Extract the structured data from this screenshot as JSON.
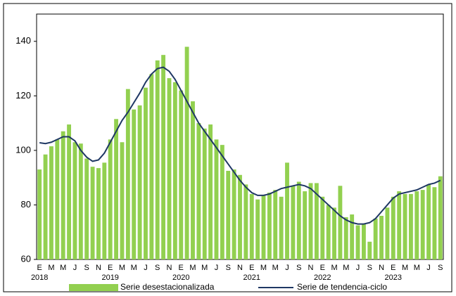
{
  "chart_data": {
    "type": "bar_line",
    "categories": [
      "E",
      null,
      "M",
      null,
      "M",
      null,
      "J",
      null,
      "S",
      null,
      "N",
      null,
      "E",
      null,
      "M",
      null,
      "M",
      null,
      "J",
      null,
      "S",
      null,
      "N",
      null,
      "E",
      null,
      "M",
      null,
      "M",
      null,
      "J",
      null,
      "S",
      null,
      "N",
      null,
      "E",
      null,
      "M",
      null,
      "M",
      null,
      "J",
      null,
      "S",
      null,
      "N",
      null,
      "E",
      null,
      "M",
      null,
      "M",
      null,
      "J",
      null,
      "S",
      null,
      "N",
      null,
      "E",
      null,
      "M",
      null,
      "M",
      null,
      "J",
      null,
      "S"
    ],
    "years": [
      "2018",
      "2019",
      "2020",
      "2021",
      "2022",
      "2023"
    ],
    "ylim": [
      60,
      150
    ],
    "yticks": [
      60,
      80,
      100,
      120,
      140
    ],
    "series": [
      {
        "name": "Serie desestacionalizada",
        "type": "bar",
        "color": "#92d050",
        "values": [
          93,
          98.5,
          101.5,
          104,
          107,
          109.5,
          103,
          102.5,
          97,
          94,
          93.5,
          95.5,
          104,
          111.5,
          103,
          122.5,
          115,
          116.5,
          123,
          128,
          133,
          135,
          126.5,
          125,
          122,
          138,
          118,
          110,
          108,
          109.5,
          104,
          102,
          92.5,
          93,
          91,
          87.5,
          84,
          82,
          83.5,
          84.5,
          85.5,
          83,
          95.5,
          87,
          88.5,
          85,
          88,
          88,
          83,
          80,
          79,
          87,
          75.5,
          76.5,
          72.5,
          73,
          66.5,
          75,
          76,
          79,
          83,
          85,
          84,
          84,
          85,
          85.5,
          87.5,
          86.5,
          90.5
        ]
      },
      {
        "name": "Serie de tendencia-ciclo",
        "type": "line",
        "color": "#1f3864",
        "values": [
          102.8,
          102.5,
          103,
          104,
          105,
          105,
          103.5,
          100,
          97.5,
          96,
          96.5,
          99,
          103,
          107,
          111,
          114,
          117.5,
          121,
          125,
          128,
          130,
          130.5,
          129,
          126,
          122,
          118,
          114,
          110,
          107,
          104,
          101,
          98,
          95,
          92,
          89,
          86.5,
          84.5,
          83.5,
          83.5,
          84,
          85,
          86,
          86.5,
          87,
          87.5,
          87,
          86,
          84,
          82,
          80,
          78,
          76,
          74.5,
          73.5,
          73,
          73,
          73.5,
          75,
          77.5,
          80,
          82.5,
          84,
          84.5,
          85,
          85.5,
          86.5,
          87.5,
          88,
          89
        ]
      }
    ]
  }
}
